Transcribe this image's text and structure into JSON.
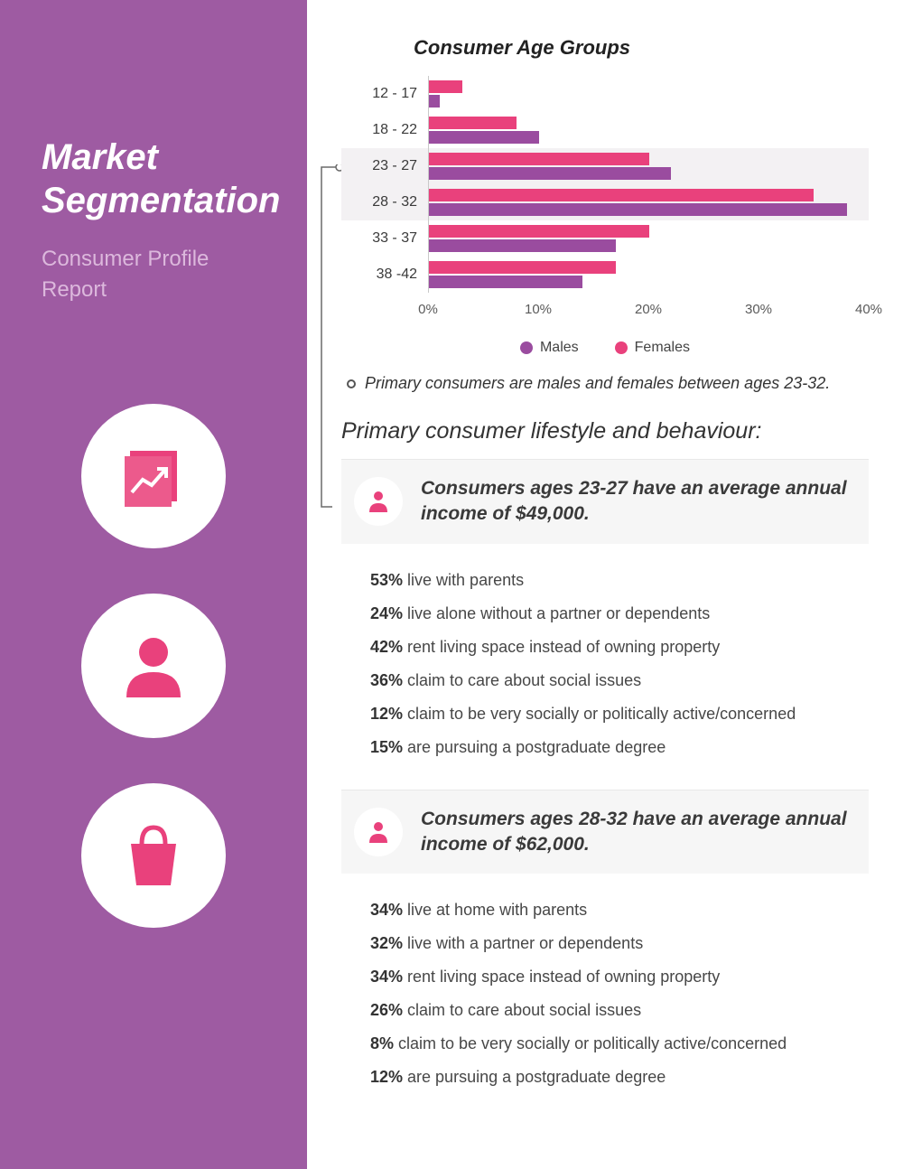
{
  "colors": {
    "sidebar_bg": "#9e5ba2",
    "pink": "#e9417c",
    "purple_bar": "#9a4c9f",
    "pink_bar": "#e9417c",
    "subtitle": "#dcb8dc",
    "text_dark": "#333333",
    "grid": "#dddddd"
  },
  "sidebar": {
    "title": "Market Segmentation",
    "subtitle": "Consumer Profile Report"
  },
  "chart": {
    "title": "Consumer Age Groups",
    "type": "grouped-horizontal-bar",
    "x_max": 40,
    "x_ticks": [
      0,
      10,
      20,
      30,
      40
    ],
    "x_tick_suffix": "%",
    "series": [
      {
        "name": "Males",
        "color": "#9a4c9f"
      },
      {
        "name": "Females",
        "color": "#e9417c"
      }
    ],
    "rows": [
      {
        "label": "12 - 17",
        "female": 3,
        "male": 1,
        "highlight": false
      },
      {
        "label": "18 - 22",
        "female": 8,
        "male": 10,
        "highlight": false
      },
      {
        "label": "23 - 27",
        "female": 20,
        "male": 22,
        "highlight": true
      },
      {
        "label": "28 - 32",
        "female": 35,
        "male": 38,
        "highlight": true
      },
      {
        "label": "33 - 37",
        "female": 20,
        "male": 17,
        "highlight": false
      },
      {
        "label": "38 -42",
        "female": 17,
        "male": 14,
        "highlight": false
      }
    ],
    "annotation": "Primary consumers are males and females between ages 23-32."
  },
  "behaviour": {
    "heading": "Primary consumer lifestyle and behaviour:",
    "groups": [
      {
        "title": "Consumers ages 23-27 have an average annual income of $49,000.",
        "stats": [
          {
            "pct": "53%",
            "text": "live with parents"
          },
          {
            "pct": "24%",
            "text": "live alone without a partner or dependents"
          },
          {
            "pct": "42%",
            "text": "rent living space instead of owning property"
          },
          {
            "pct": "36%",
            "text": "claim to care about social issues"
          },
          {
            "pct": "12%",
            "text": "claim to be very socially or politically active/concerned"
          },
          {
            "pct": "15%",
            "text": "are pursuing a postgraduate degree"
          }
        ]
      },
      {
        "title": "Consumers ages 28-32 have an average annual income of $62,000.",
        "stats": [
          {
            "pct": "34%",
            "text": "live at home with parents"
          },
          {
            "pct": "32%",
            "text": "live with a partner or dependents"
          },
          {
            "pct": "34%",
            "text": "rent living space instead of owning property"
          },
          {
            "pct": "26%",
            "text": "claim to care about social issues"
          },
          {
            "pct": "8%",
            "text": "claim to be very socially or politically active/concerned"
          },
          {
            "pct": "12%",
            "text": "are pursuing a postgraduate degree"
          }
        ]
      }
    ]
  }
}
